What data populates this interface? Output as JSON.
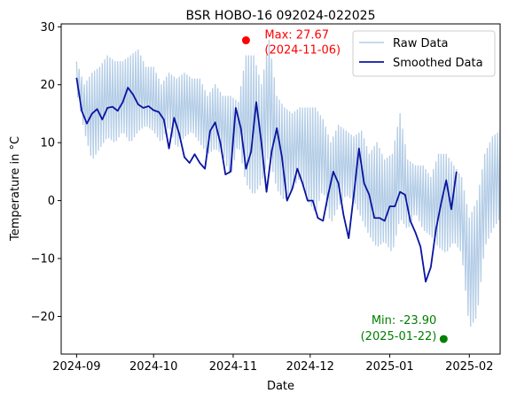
{
  "chart_data": {
    "type": "line",
    "title": "BSR HOBO-16 092024-022025",
    "xlabel": "Date",
    "ylabel": "Temperature in °C",
    "xlim": [
      "2024-08-26",
      "2025-02-13"
    ],
    "ylim": [
      -26.5,
      30.5
    ],
    "x_ticks": [
      "2024-09-01",
      "2024-10-01",
      "2024-11-01",
      "2024-12-01",
      "2025-01-01",
      "2025-02-01"
    ],
    "x_tick_labels": [
      "2024-09",
      "2024-10",
      "2024-11",
      "2024-12",
      "2025-01",
      "2025-02"
    ],
    "y_ticks": [
      -20,
      -10,
      0,
      10,
      20,
      30
    ],
    "y_tick_labels": [
      "−20",
      "−10",
      "0",
      "10",
      "20",
      "30"
    ],
    "legend": {
      "placement": "top-right"
    },
    "series": [
      {
        "name": "Raw Data",
        "color": "#b4cde6",
        "description_points": "daily band: daily minimum and maximum readings",
        "x_start": "2024-09-01",
        "x_step_days": 3,
        "min": [
          19,
          12,
          7,
          9,
          11,
          10,
          12,
          10,
          12,
          13,
          12,
          10,
          13,
          9,
          11,
          12,
          10,
          8,
          9,
          8,
          4,
          10,
          3,
          1,
          3,
          8,
          2,
          0,
          2,
          4,
          0,
          -2,
          2,
          -4,
          -1,
          1,
          0,
          -3,
          -6,
          -8,
          -7,
          -9,
          -3,
          -5,
          -2,
          -5,
          -6,
          -8,
          -9,
          -7,
          -9,
          -22,
          -20,
          -8,
          -5,
          -3,
          -6
        ],
        "max": [
          24,
          20,
          22,
          23,
          25,
          24,
          24,
          25,
          26,
          23,
          23,
          20,
          22,
          21,
          22,
          21,
          21,
          18,
          20,
          18,
          18,
          17,
          25,
          25,
          20,
          27.67,
          18,
          16,
          15,
          16,
          16,
          16,
          14,
          10,
          13,
          12,
          11,
          12,
          8,
          10,
          7,
          8,
          15,
          7,
          6,
          6,
          4,
          8,
          8,
          6,
          4,
          -3,
          0,
          8,
          11,
          12,
          12
        ]
      },
      {
        "name": "Smoothed Data",
        "color": "#0a14a0",
        "x_start": "2024-09-01",
        "x_step_days": 2,
        "values": [
          21.2,
          15.5,
          13.3,
          15.0,
          15.8,
          14.0,
          16.0,
          16.2,
          15.5,
          17.0,
          19.5,
          18.3,
          16.6,
          16.0,
          16.3,
          15.6,
          15.3,
          14.0,
          9.0,
          14.3,
          11.5,
          7.5,
          6.5,
          8.0,
          6.5,
          5.5,
          12.0,
          13.5,
          10.0,
          4.5,
          5.0,
          16.0,
          12.5,
          5.5,
          8.5,
          17.0,
          10.0,
          1.5,
          8.5,
          12.5,
          7.5,
          0.0,
          2.0,
          5.5,
          3.0,
          0.0,
          0.0,
          -3.0,
          -3.5,
          1.0,
          5.0,
          3.0,
          -2.5,
          -6.5,
          1.0,
          9.0,
          3.0,
          1.0,
          -3.0,
          -3.0,
          -3.5,
          -1.0,
          -1.0,
          1.5,
          1.0,
          -3.5,
          -5.5,
          -8.0,
          -14.0,
          -11.5,
          -5.0,
          -0.5,
          3.5,
          -1.5,
          5.0
        ]
      }
    ],
    "annotations": [
      {
        "type": "max",
        "x": "2024-11-06",
        "y": 27.67,
        "color": "#ff0000",
        "line1": "Max: 27.67",
        "line2": "(2024-11-06)"
      },
      {
        "type": "min",
        "x": "2025-01-22",
        "y": -23.9,
        "color": "#008000",
        "line1": "Min: -23.90",
        "line2": "(2025-01-22)"
      }
    ]
  }
}
